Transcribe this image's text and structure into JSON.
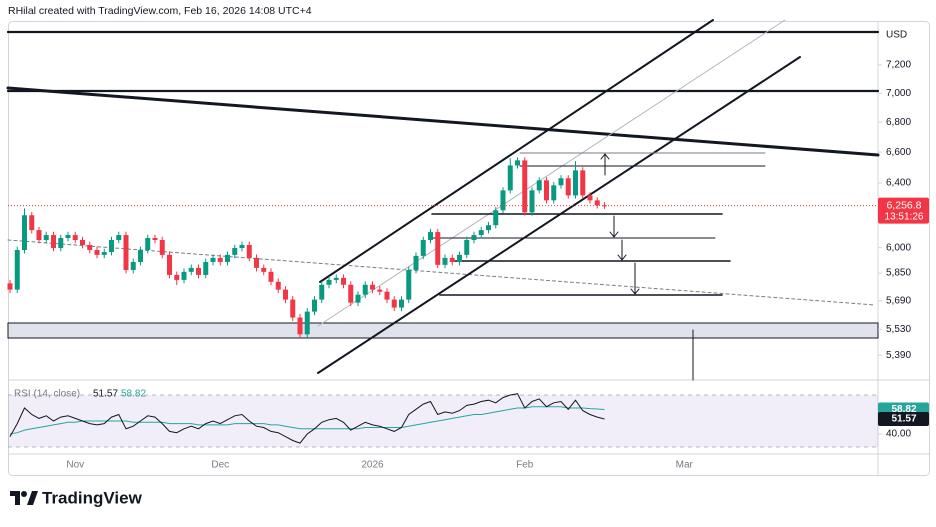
{
  "header": "RHilal created with TradingView.com, Feb 16, 2026 14:08 UTC+4",
  "branding": "TradingView",
  "chart_data": {
    "type": "candlestick",
    "currency": "USD",
    "log_scale": true,
    "up_color": "#089981",
    "down_color": "#f23645",
    "ylim": [
      5300,
      7530
    ],
    "yticks": [
      {
        "value": 5390,
        "label": "5,390"
      },
      {
        "value": 5530,
        "label": "5,530"
      },
      {
        "value": 5690,
        "label": "5,690"
      },
      {
        "value": 5850,
        "label": "5,850"
      },
      {
        "value": 6000,
        "label": "6,000"
      },
      {
        "value": 6400,
        "label": "6,400"
      },
      {
        "value": 6600,
        "label": "6,600"
      },
      {
        "value": 6800,
        "label": "6,800"
      },
      {
        "value": 7000,
        "label": "7,000"
      },
      {
        "value": 7200,
        "label": "7,200"
      }
    ],
    "categories": [
      null,
      null,
      null,
      null,
      null,
      null,
      null,
      null,
      null,
      "Nov",
      null,
      null,
      null,
      null,
      null,
      null,
      null,
      null,
      null,
      null,
      null,
      null,
      null,
      null,
      null,
      null,
      null,
      null,
      null,
      "Dec",
      null,
      null,
      null,
      null,
      null,
      null,
      null,
      null,
      null,
      null,
      null,
      null,
      null,
      null,
      null,
      null,
      null,
      null,
      null,
      null,
      "2026",
      null,
      null,
      null,
      null,
      null,
      null,
      null,
      null,
      null,
      null,
      null,
      null,
      null,
      null,
      null,
      null,
      null,
      null,
      null,
      null,
      "Feb",
      null,
      null,
      null,
      null,
      null,
      null,
      null,
      null,
      null,
      null,
      null,
      null,
      null,
      null,
      null,
      null,
      null,
      null,
      null,
      null,
      null,
      "Mar"
    ],
    "open": [
      5790,
      5754,
      5986,
      6197,
      6106,
      6046,
      6076,
      5998,
      6058,
      6076,
      6046,
      6016,
      5986,
      5957,
      5974,
      6046,
      6076,
      5868,
      5915,
      5986,
      6058,
      6046,
      5957,
      5839,
      5810,
      5857,
      5880,
      5839,
      5915,
      5939,
      5915,
      5957,
      5998,
      6016,
      5939,
      5880,
      5857,
      5799,
      5754,
      5697,
      5596,
      5503,
      5629,
      5697,
      5782,
      5810,
      5822,
      5782,
      5680,
      5725,
      5782,
      5754,
      5742,
      5697,
      5652,
      5697,
      5868,
      5951,
      6046,
      6094,
      5898,
      5939,
      5915,
      5957,
      6046,
      6076,
      6106,
      6136,
      6228,
      6353,
      6513,
      6546,
      6215,
      6353,
      6417,
      6290,
      6385,
      6430,
      6321,
      6481,
      6321,
      6290,
      6259,
      null,
      null,
      null,
      null,
      null,
      null,
      null,
      null,
      null,
      null,
      null
    ],
    "high": [
      5810,
      6006,
      6240,
      6217,
      6126,
      6096,
      6096,
      6078,
      6096,
      6096,
      6066,
      6036,
      6006,
      5994,
      6066,
      6096,
      6096,
      5935,
      6006,
      6078,
      6078,
      6066,
      5977,
      5859,
      5877,
      5900,
      5900,
      5935,
      5959,
      5959,
      5977,
      6018,
      6036,
      6036,
      5959,
      5900,
      5877,
      5819,
      5774,
      5717,
      5616,
      5649,
      5717,
      5802,
      5830,
      5842,
      5842,
      5802,
      5745,
      5802,
      5802,
      5774,
      5762,
      5717,
      5717,
      5888,
      5971,
      6066,
      6114,
      6114,
      5959,
      5959,
      5977,
      6066,
      6096,
      6126,
      6156,
      6248,
      6373,
      6560,
      6566,
      6566,
      6373,
      6437,
      6437,
      6405,
      6450,
      6450,
      6540,
      6501,
      6341,
      6310,
      6279,
      null,
      null,
      null,
      null,
      null,
      null,
      null,
      null,
      null,
      null,
      null
    ],
    "low": [
      5734,
      5734,
      5966,
      6086,
      6026,
      6026,
      5978,
      5978,
      6038,
      6026,
      5996,
      5966,
      5937,
      5937,
      5954,
      6026,
      5848,
      5848,
      5895,
      5966,
      6026,
      5937,
      5819,
      5780,
      5790,
      5837,
      5819,
      5819,
      5895,
      5895,
      5895,
      5937,
      5978,
      5919,
      5860,
      5837,
      5779,
      5734,
      5677,
      5576,
      5483,
      5483,
      5609,
      5677,
      5762,
      5790,
      5762,
      5660,
      5660,
      5705,
      5734,
      5722,
      5677,
      5632,
      5632,
      5677,
      5848,
      5931,
      6026,
      5878,
      5878,
      5895,
      5895,
      5937,
      6026,
      6056,
      6086,
      6116,
      6208,
      6333,
      6493,
      6195,
      6195,
      6333,
      6270,
      6270,
      6365,
      6301,
      6301,
      6301,
      6270,
      6239,
      6237,
      null,
      null,
      null,
      null,
      null,
      null,
      null,
      null,
      null,
      null,
      null
    ],
    "close": [
      5754,
      5986,
      6197,
      6106,
      6046,
      6076,
      5998,
      6058,
      6076,
      6046,
      6016,
      5986,
      5957,
      5974,
      6046,
      6076,
      5868,
      5915,
      5986,
      6058,
      6046,
      5957,
      5839,
      5810,
      5857,
      5880,
      5839,
      5915,
      5939,
      5915,
      5957,
      5998,
      6016,
      5939,
      5880,
      5857,
      5799,
      5754,
      5697,
      5596,
      5503,
      5629,
      5697,
      5782,
      5810,
      5822,
      5782,
      5680,
      5725,
      5782,
      5754,
      5742,
      5697,
      5652,
      5697,
      5868,
      5951,
      6046,
      6094,
      5898,
      5939,
      5915,
      5957,
      6046,
      6076,
      6106,
      6136,
      6228,
      6353,
      6513,
      6546,
      6215,
      6353,
      6417,
      6290,
      6385,
      6430,
      6321,
      6481,
      6321,
      6290,
      6259,
      6256.8,
      null,
      null,
      null,
      null,
      null,
      null,
      null,
      null,
      null,
      null,
      null
    ],
    "price_tag": {
      "value": 6256.8,
      "label": "6,256.8",
      "countdown": "13:51:26"
    },
    "rsi": {
      "title": "RSI (14, close)",
      "color": "#131722",
      "ma_color": "#26a69a",
      "ylim": [
        30,
        70
      ],
      "yticks": [
        {
          "value": 40,
          "label": "40.00"
        }
      ],
      "values": [
        38,
        48,
        60,
        55,
        52,
        54,
        50,
        53,
        54,
        52,
        50,
        48,
        47,
        48,
        53,
        55,
        44,
        46,
        50,
        54,
        53,
        48,
        42,
        41,
        44,
        46,
        44,
        48,
        50,
        48,
        51,
        54,
        55,
        50,
        46,
        45,
        42,
        41,
        38,
        35,
        33,
        40,
        44,
        49,
        51,
        52,
        49,
        43,
        46,
        49,
        47,
        46,
        44,
        42,
        45,
        55,
        59,
        63,
        65,
        55,
        57,
        56,
        58,
        62,
        63,
        65,
        66,
        64,
        68,
        70,
        71,
        60,
        65,
        67,
        61,
        64,
        65,
        59,
        66,
        58,
        55,
        53,
        51.57,
        null,
        null,
        null,
        null,
        null,
        null,
        null,
        null,
        null,
        null,
        null
      ],
      "ma_values": [
        40,
        41,
        43,
        44,
        45,
        46,
        47,
        48,
        49,
        49,
        50,
        50,
        50,
        50,
        50,
        50,
        50,
        49,
        49,
        49,
        49,
        49,
        48,
        48,
        48,
        48,
        47,
        47,
        47,
        47,
        47,
        48,
        48,
        48,
        48,
        48,
        47,
        47,
        46,
        45,
        44,
        44,
        44,
        44,
        44,
        44,
        44,
        44,
        44,
        45,
        45,
        45,
        45,
        45,
        45,
        46,
        47,
        48,
        49,
        50,
        51,
        52,
        53,
        54,
        55,
        55,
        56,
        57,
        58,
        59,
        60,
        60,
        61,
        61,
        61,
        61,
        61,
        60,
        60,
        60,
        59.5,
        59.2,
        58.82,
        null,
        null,
        null,
        null,
        null,
        null,
        null,
        null,
        null,
        null,
        null
      ]
    }
  }
}
